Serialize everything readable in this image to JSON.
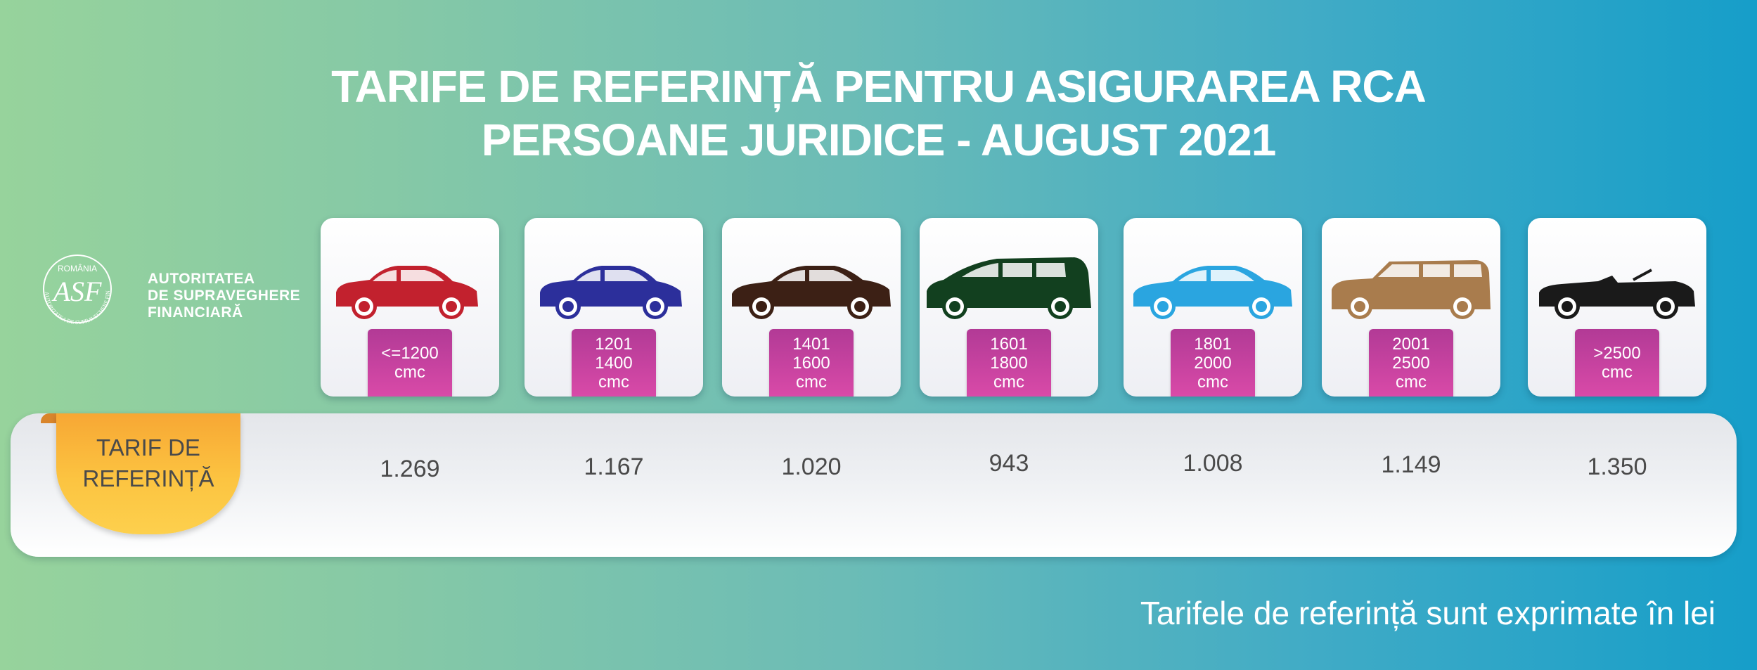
{
  "title": {
    "line1": "TARIFE DE REFERINȚĂ PENTRU ASIGURAREA RCA",
    "line2": "PERSOANE JURIDICE - AUGUST 2021"
  },
  "logo": {
    "circle_top": "ROMÂNIA",
    "monogram": "ASF",
    "circle_ring": "AUTORITATEA DE SUPRAVEGHERE FINANCIARĂ",
    "line1": "AUTORITATEA",
    "line2": "DE SUPRAVEGHERE",
    "line3": "FINANCIARĂ"
  },
  "vehicles": [
    {
      "icon": "hatchback-car-icon",
      "color": "#c2212e",
      "range": [
        "<=1200",
        "cmc"
      ],
      "tariff": "1.269"
    },
    {
      "icon": "hatchback-car-icon",
      "color": "#2c2f9b",
      "range": [
        "1201",
        "1400",
        "cmc"
      ],
      "tariff": "1.167"
    },
    {
      "icon": "sedan-car-icon",
      "color": "#3c2015",
      "range": [
        "1401",
        "1600",
        "cmc"
      ],
      "tariff": "1.020"
    },
    {
      "icon": "minivan-car-icon",
      "color": "#12401f",
      "range": [
        "1601",
        "1800",
        "cmc"
      ],
      "tariff": "943"
    },
    {
      "icon": "sedan-car-icon",
      "color": "#2aa5e0",
      "range": [
        "1801",
        "2000",
        "cmc"
      ],
      "tariff": "1.008"
    },
    {
      "icon": "suv-car-icon",
      "color": "#a97c4d",
      "range": [
        "2001",
        "2500",
        "cmc"
      ],
      "tariff": "1.149"
    },
    {
      "icon": "convertible-car-icon",
      "color": "#1a1a1a",
      "range": [
        ">2500",
        "cmc"
      ],
      "tariff": "1.350"
    }
  ],
  "row_label": [
    "TARIF DE",
    "REFERINȚĂ"
  ],
  "footnote": "Tarifele de referință sunt exprimate în lei"
}
